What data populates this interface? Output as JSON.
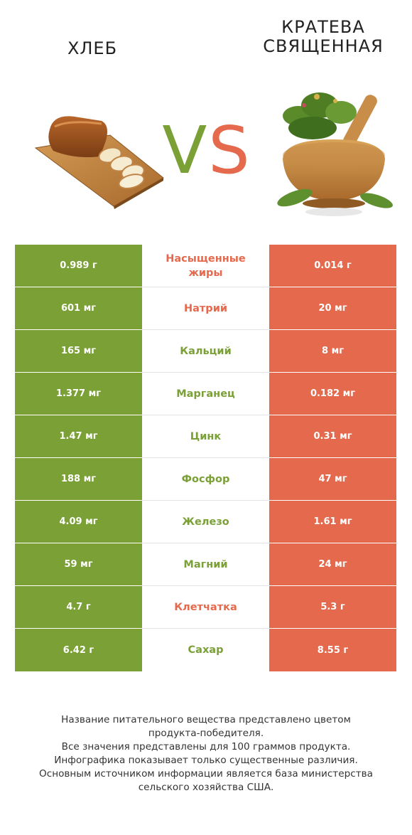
{
  "header": {
    "left_title": "ХЛЕБ",
    "right_title_line1": "КРАТЕВА",
    "right_title_line2": "СВЯЩЕННАЯ",
    "vs_v": "V",
    "vs_s": "S"
  },
  "colors": {
    "left_winner": "#7aa036",
    "right_winner": "#e56a4d"
  },
  "rows": [
    {
      "left": "0.989 г",
      "label": "Насыщенные жиры",
      "right": "0.014 г",
      "winner": "right"
    },
    {
      "left": "601 мг",
      "label": "Натрий",
      "right": "20 мг",
      "winner": "right"
    },
    {
      "left": "165 мг",
      "label": "Кальций",
      "right": "8 мг",
      "winner": "left"
    },
    {
      "left": "1.377 мг",
      "label": "Марганец",
      "right": "0.182 мг",
      "winner": "left"
    },
    {
      "left": "1.47 мг",
      "label": "Цинк",
      "right": "0.31 мг",
      "winner": "left"
    },
    {
      "left": "188 мг",
      "label": "Фосфор",
      "right": "47 мг",
      "winner": "left"
    },
    {
      "left": "4.09 мг",
      "label": "Железо",
      "right": "1.61 мг",
      "winner": "left"
    },
    {
      "left": "59 мг",
      "label": "Магний",
      "right": "24 мг",
      "winner": "left"
    },
    {
      "left": "4.7 г",
      "label": "Клетчатка",
      "right": "5.3 г",
      "winner": "right"
    },
    {
      "left": "6.42 г",
      "label": "Сахар",
      "right": "8.55 г",
      "winner": "left"
    }
  ],
  "footer": {
    "line1": "Название питательного вещества представлено цветом",
    "line2": "продукта-победителя.",
    "line3": "Все значения представлены для 100 граммов продукта.",
    "line4": "Инфографика показывает только существенные различия.",
    "line5": "Основным источником информации является база министерства",
    "line6": "сельского хозяйства США."
  }
}
